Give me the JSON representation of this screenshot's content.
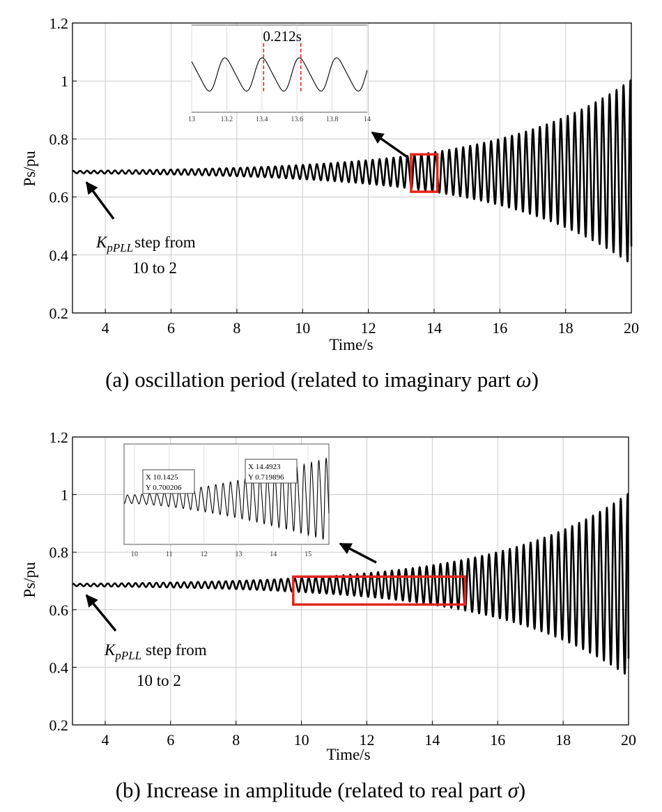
{
  "chart_data": [
    {
      "type": "line",
      "panel": "a",
      "caption_text": "(a) oscillation period (related to imaginary part ",
      "caption_symbol": "ω",
      "caption_close": ")",
      "xlabel": "Time/s",
      "ylabel": "Ps/pu",
      "xlim": [
        3,
        20
      ],
      "ylim": [
        0.2,
        1.2
      ],
      "xticks": [
        4,
        6,
        8,
        10,
        12,
        14,
        16,
        18,
        20
      ],
      "yticks": [
        0.2,
        0.4,
        0.6,
        0.8,
        1,
        1.2
      ],
      "xtick_labels": [
        "4",
        "6",
        "8",
        "10",
        "12",
        "14",
        "16",
        "18",
        "20"
      ],
      "ytick_labels": [
        "0.2",
        "0.4",
        "0.6",
        "0.8",
        "1",
        "1.2"
      ],
      "grid": true,
      "series": [
        {
          "name": "Ps",
          "mean": 0.686,
          "oscillation_start_s": 3,
          "initial_half_amplitude": 0.004,
          "half_amplitude_at_20s": 0.31,
          "period_s": 0.212,
          "end_value": 0.43
        }
      ],
      "highlight_box": {
        "x": [
          13.3,
          14.1
        ],
        "y": [
          0.618,
          0.747
        ]
      },
      "annotation": {
        "symbol": "K",
        "subscript": "pPLL",
        "text_after": "step from",
        "line2": "10 to 2",
        "arrow_target": [
          3.3,
          0.66
        ]
      },
      "inset": {
        "xlim": [
          13,
          14
        ],
        "ylim": [
          0.55,
          0.85
        ],
        "xticks": [
          13,
          13.2,
          13.4,
          13.6,
          13.8,
          14
        ],
        "xtick_labels": [
          "13",
          "13.2",
          "13.4",
          "13.6",
          "13.8",
          "14"
        ],
        "grid": true,
        "period_s": 0.212,
        "amplitude": 0.055,
        "mean": 0.68,
        "markers_x": [
          13.41,
          13.622
        ],
        "marker_label": "0.212s",
        "marker_color": "#d7261e"
      }
    },
    {
      "type": "line",
      "panel": "b",
      "caption_text": "(b) Increase in amplitude (related to real part ",
      "caption_symbol": "σ",
      "caption_close": ")",
      "xlabel": "Time/s",
      "ylabel": "Ps/pu",
      "xlim": [
        3,
        20
      ],
      "ylim": [
        0.2,
        1.2
      ],
      "xticks": [
        4,
        6,
        8,
        10,
        12,
        14,
        16,
        18,
        20
      ],
      "yticks": [
        0.2,
        0.4,
        0.6,
        0.8,
        1,
        1.2
      ],
      "xtick_labels": [
        "4",
        "6",
        "8",
        "10",
        "12",
        "14",
        "16",
        "18",
        "20"
      ],
      "ytick_labels": [
        "0.2",
        "0.4",
        "0.6",
        "0.8",
        "1",
        "1.2"
      ],
      "grid": true,
      "series": [
        {
          "name": "Ps",
          "mean": 0.686,
          "oscillation_start_s": 3,
          "initial_half_amplitude": 0.004,
          "half_amplitude_at_20s": 0.31,
          "period_s": 0.212,
          "end_value": 0.43
        }
      ],
      "highlight_box": {
        "x": [
          9.75,
          15.0
        ],
        "y": [
          0.618,
          0.715
        ]
      },
      "annotation": {
        "symbol": "K",
        "subscript": "pPLL",
        "text_after": "step from",
        "line2": "10 to 2",
        "arrow_target": [
          3.3,
          0.66
        ]
      },
      "inset": {
        "xlim": [
          9.7,
          15.6
        ],
        "ylim": [
          0.55,
          0.85
        ],
        "xticks": [
          10,
          11,
          12,
          13,
          14,
          15
        ],
        "xtick_labels": [
          "10",
          "11",
          "12",
          "13",
          "14",
          "15"
        ],
        "grid": true,
        "period_s": 0.212,
        "mean": 0.685,
        "start_half_amplitude": 0.012,
        "end_half_amplitude": 0.12,
        "datatips": [
          {
            "x_label": "X 10.1425",
            "y_label": "Y 0.700206",
            "x": 10.1425,
            "y": 0.700206
          },
          {
            "x_label": "X 14.4923",
            "y_label": "Y 0.719896",
            "x": 14.4923,
            "y": 0.719896
          }
        ]
      }
    }
  ]
}
